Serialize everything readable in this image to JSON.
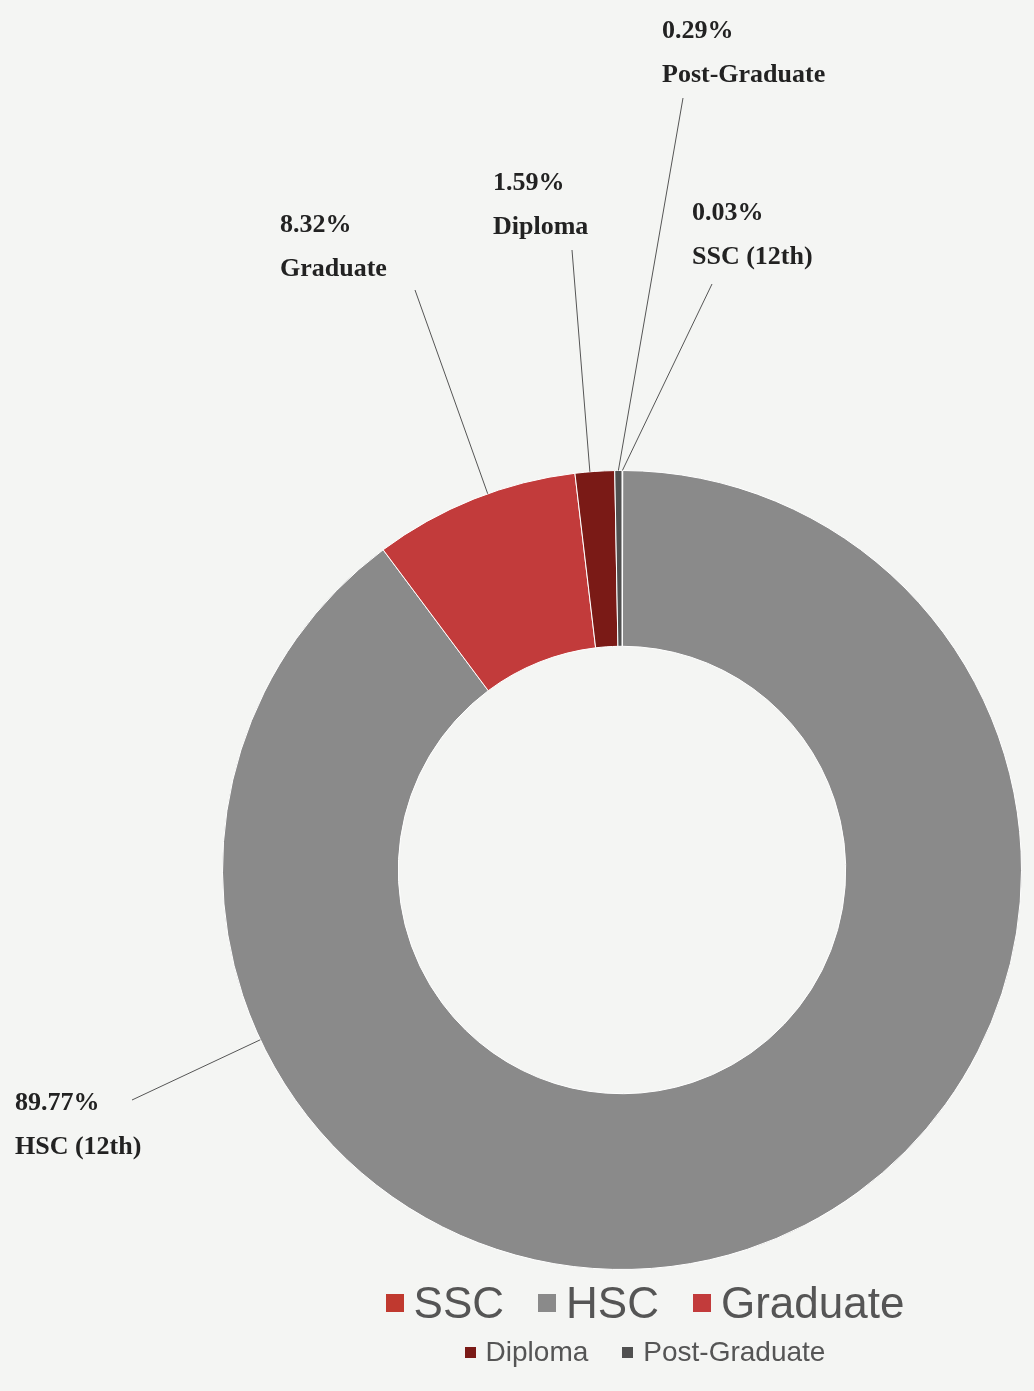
{
  "chart_data": {
    "type": "doughnut",
    "categories": [
      "SSC",
      "HSC",
      "Graduate",
      "Diploma",
      "Post-Graduate"
    ],
    "values": [
      0.03,
      89.77,
      8.32,
      1.59,
      0.29
    ],
    "value_labels": [
      "0.03%",
      "89.77%",
      "8.32%",
      "1.59%",
      "0.29%"
    ],
    "slice_labels": [
      "SSC (12th)",
      "HSC (12th)",
      "Graduate",
      "Diploma",
      "Post-Graduate"
    ],
    "colors": [
      "#c0392f",
      "#8a8a8a",
      "#c23b3b",
      "#7a1a16",
      "#505050"
    ],
    "data_labels": true,
    "legend": "bottom"
  }
}
